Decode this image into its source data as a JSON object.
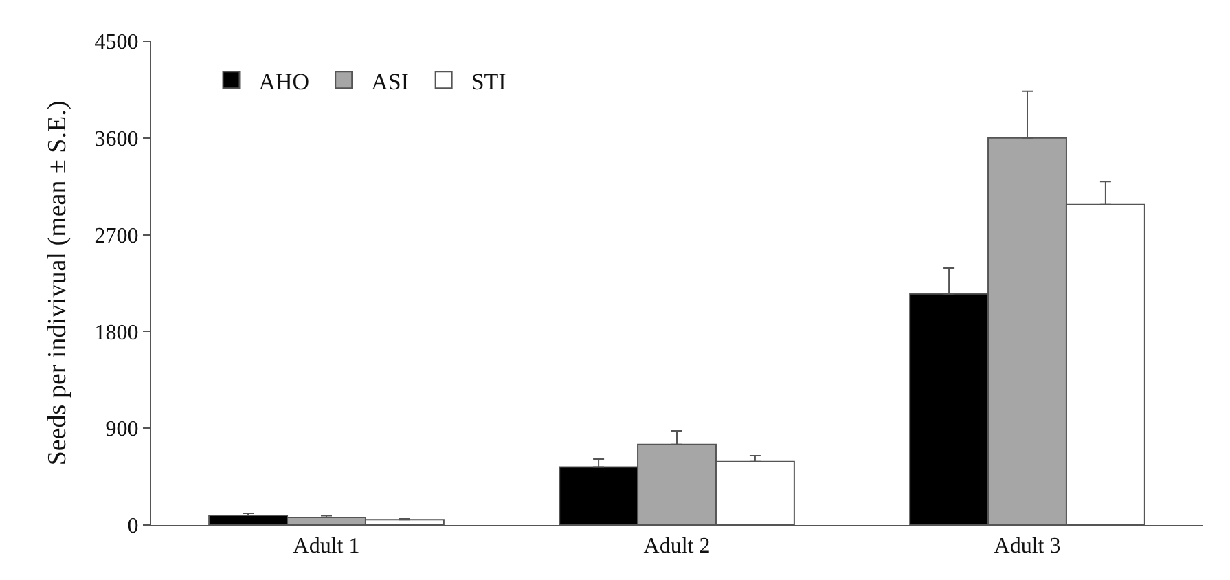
{
  "chart_data": {
    "type": "bar",
    "ylabel": "Seeds per indivivual (mean ± S.E.)",
    "categories": [
      "Adult 1",
      "Adult 2",
      "Adult 3"
    ],
    "series": [
      {
        "name": "AHO",
        "color": "#000000",
        "values": [
          90,
          540,
          2150
        ],
        "errors": [
          18,
          73,
          240
        ]
      },
      {
        "name": "ASI",
        "color": "#a6a6a6",
        "values": [
          70,
          750,
          3600
        ],
        "errors": [
          17,
          125,
          435
        ]
      },
      {
        "name": "STI",
        "color": "#ffffff",
        "values": [
          50,
          590,
          2980
        ],
        "errors": [
          8,
          55,
          215
        ]
      }
    ],
    "ylim": [
      0,
      4500
    ],
    "yticks": [
      0,
      900,
      1800,
      2700,
      3600,
      4500
    ],
    "legend": "top left"
  }
}
